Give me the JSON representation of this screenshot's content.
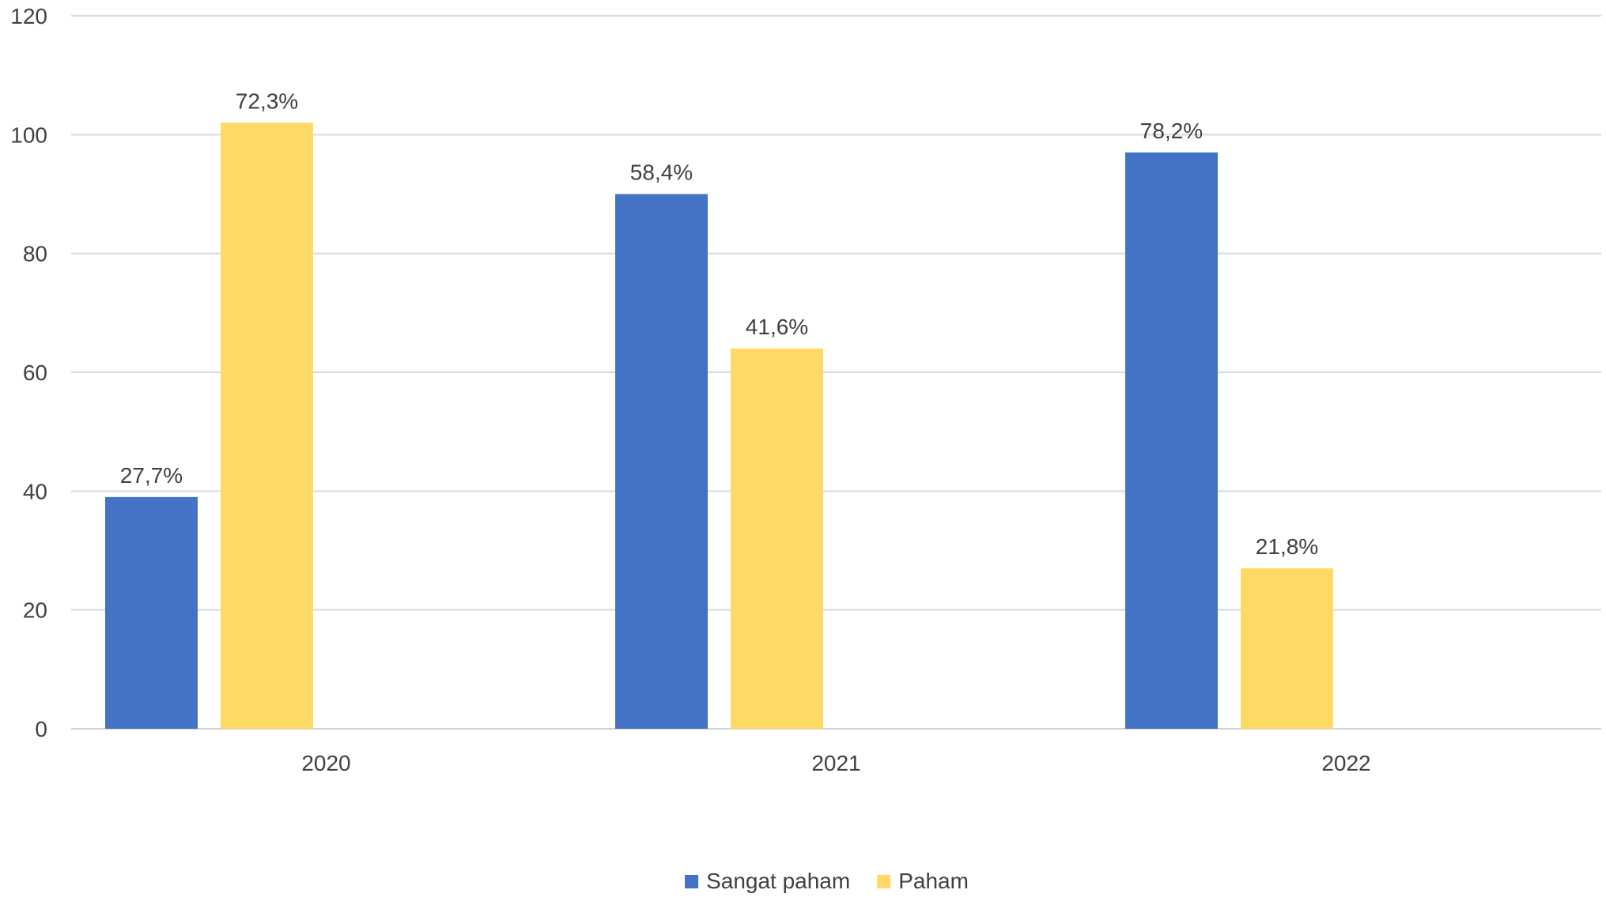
{
  "chart_data": {
    "type": "bar",
    "title": "",
    "xlabel": "",
    "ylabel": "",
    "categories": [
      "2020",
      "2021",
      "2022"
    ],
    "ylim": [
      0,
      120
    ],
    "yticks": [
      0,
      20,
      40,
      60,
      80,
      100,
      120
    ],
    "grid": true,
    "legend_position": "bottom",
    "series": [
      {
        "name": "Sangat paham",
        "color": "#4472C4",
        "values": [
          39,
          90,
          97
        ],
        "labels": [
          "27,7%",
          "58,4%",
          "78,2%"
        ]
      },
      {
        "name": "Paham",
        "color": "#FFD966",
        "values": [
          102,
          64,
          27
        ],
        "labels": [
          "72,3%",
          "41,6%",
          "21,8%"
        ]
      }
    ]
  }
}
